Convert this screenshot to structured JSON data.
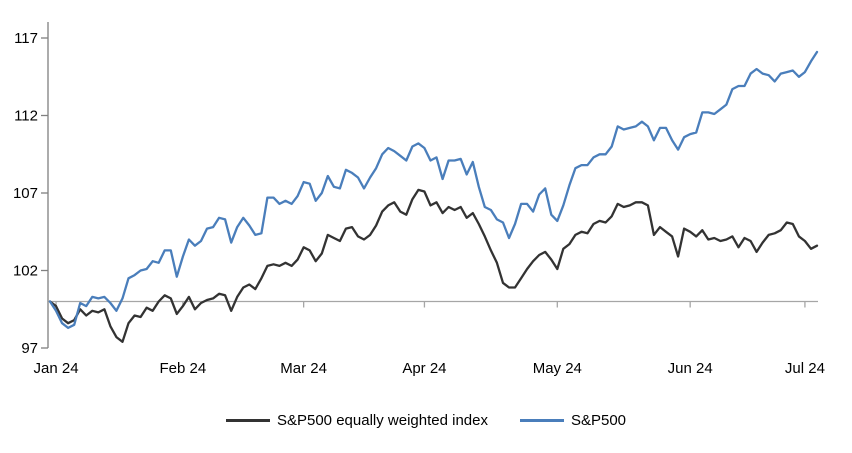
{
  "chart_data": {
    "type": "line",
    "title": "",
    "grid": false,
    "axis_color": "#808080",
    "baseline_color": "#a6a6a6",
    "x_axis": {
      "tick_labels": [
        "Jan 24",
        "Feb 24",
        "Mar 24",
        "Apr 24",
        "May 24",
        "Jun 24",
        "Jul 24"
      ]
    },
    "y_axis": {
      "ticks": [
        97,
        102,
        107,
        112,
        117
      ],
      "range": [
        97,
        118.2
      ],
      "baseline": 100
    },
    "legend": {
      "position": "bottom"
    },
    "month_start_indices": [
      1,
      22,
      42,
      62,
      84,
      106,
      125
    ],
    "dates": [
      "Dec 29",
      "Jan 2",
      "Jan 3",
      "Jan 4",
      "Jan 5",
      "Jan 8",
      "Jan 9",
      "Jan 10",
      "Jan 11",
      "Jan 12",
      "Jan 16",
      "Jan 17",
      "Jan 18",
      "Jan 19",
      "Jan 22",
      "Jan 23",
      "Jan 24",
      "Jan 25",
      "Jan 26",
      "Jan 29",
      "Jan 30",
      "Jan 31",
      "Feb 1",
      "Feb 2",
      "Feb 5",
      "Feb 6",
      "Feb 7",
      "Feb 8",
      "Feb 9",
      "Feb 12",
      "Feb 13",
      "Feb 14",
      "Feb 15",
      "Feb 16",
      "Feb 20",
      "Feb 21",
      "Feb 22",
      "Feb 23",
      "Feb 26",
      "Feb 27",
      "Feb 28",
      "Feb 29",
      "Mar 1",
      "Mar 4",
      "Mar 5",
      "Mar 6",
      "Mar 7",
      "Mar 8",
      "Mar 11",
      "Mar 12",
      "Mar 13",
      "Mar 14",
      "Mar 15",
      "Mar 18",
      "Mar 19",
      "Mar 20",
      "Mar 21",
      "Mar 22",
      "Mar 25",
      "Mar 26",
      "Mar 27",
      "Mar 28",
      "Apr 1",
      "Apr 2",
      "Apr 3",
      "Apr 4",
      "Apr 5",
      "Apr 8",
      "Apr 9",
      "Apr 10",
      "Apr 11",
      "Apr 12",
      "Apr 15",
      "Apr 16",
      "Apr 17",
      "Apr 18",
      "Apr 19",
      "Apr 22",
      "Apr 23",
      "Apr 24",
      "Apr 25",
      "Apr 26",
      "Apr 29",
      "Apr 30",
      "May 1",
      "May 2",
      "May 3",
      "May 6",
      "May 7",
      "May 8",
      "May 9",
      "May 10",
      "May 13",
      "May 14",
      "May 15",
      "May 16",
      "May 17",
      "May 20",
      "May 21",
      "May 22",
      "May 23",
      "May 24",
      "May 28",
      "May 29",
      "May 30",
      "May 31",
      "Jun 3",
      "Jun 4",
      "Jun 5",
      "Jun 6",
      "Jun 7",
      "Jun 10",
      "Jun 11",
      "Jun 12",
      "Jun 13",
      "Jun 14",
      "Jun 17",
      "Jun 18",
      "Jun 20",
      "Jun 21",
      "Jun 24",
      "Jun 25",
      "Jun 26",
      "Jun 27",
      "Jun 28",
      "Jul 1",
      "Jul 2",
      "Jul 3"
    ],
    "series": [
      {
        "name": "S&P500 equally weighted index",
        "color": "#333333",
        "data_name": "sp500-equal-weight-line",
        "values": [
          100.0,
          99.7,
          98.9,
          98.6,
          98.8,
          99.5,
          99.1,
          99.4,
          99.3,
          99.5,
          98.4,
          97.7,
          97.4,
          98.6,
          99.1,
          99.0,
          99.6,
          99.4,
          100.0,
          100.4,
          100.2,
          99.2,
          99.7,
          100.3,
          99.5,
          99.9,
          100.1,
          100.2,
          100.5,
          100.4,
          99.4,
          100.3,
          100.9,
          101.1,
          100.8,
          101.5,
          102.3,
          102.4,
          102.3,
          102.5,
          102.3,
          102.7,
          103.5,
          103.3,
          102.6,
          103.1,
          104.3,
          104.1,
          103.9,
          104.7,
          104.8,
          104.2,
          104.0,
          104.3,
          104.9,
          105.8,
          106.2,
          106.4,
          105.8,
          105.6,
          106.6,
          107.2,
          107.1,
          106.2,
          106.4,
          105.7,
          106.1,
          105.9,
          106.1,
          105.4,
          105.7,
          105.0,
          104.2,
          103.3,
          102.5,
          101.2,
          100.9,
          100.9,
          101.5,
          102.1,
          102.6,
          103.0,
          103.2,
          102.7,
          102.1,
          103.4,
          103.7,
          104.3,
          104.5,
          104.4,
          105.0,
          105.2,
          105.1,
          105.5,
          106.3,
          106.1,
          106.2,
          106.4,
          106.4,
          106.2,
          104.3,
          104.8,
          104.5,
          104.2,
          102.9,
          104.7,
          104.5,
          104.2,
          104.6,
          104.0,
          104.1,
          103.9,
          104.0,
          104.2,
          103.5,
          104.1,
          103.9,
          103.2,
          103.8,
          104.3,
          104.4,
          104.6,
          105.1,
          105.0,
          104.2,
          103.9,
          103.4,
          103.6
        ]
      },
      {
        "name": "S&P500",
        "color": "#4a7ebb",
        "data_name": "sp500-line",
        "values": [
          100.0,
          99.4,
          98.6,
          98.3,
          98.5,
          99.9,
          99.7,
          100.3,
          100.2,
          100.3,
          99.9,
          99.4,
          100.2,
          101.5,
          101.7,
          102.0,
          102.1,
          102.6,
          102.5,
          103.3,
          103.3,
          101.6,
          102.9,
          104.0,
          103.6,
          103.9,
          104.7,
          104.8,
          105.4,
          105.3,
          103.8,
          104.8,
          105.4,
          104.9,
          104.3,
          104.4,
          106.7,
          106.7,
          106.3,
          106.5,
          106.3,
          106.8,
          107.7,
          107.6,
          106.5,
          107.0,
          108.1,
          107.4,
          107.3,
          108.5,
          108.3,
          108.0,
          107.3,
          108.0,
          108.6,
          109.5,
          109.9,
          109.7,
          109.4,
          109.1,
          110.0,
          110.2,
          109.9,
          109.1,
          109.3,
          107.9,
          109.1,
          109.1,
          109.2,
          108.2,
          109.0,
          107.4,
          106.1,
          105.9,
          105.3,
          105.1,
          104.1,
          105.0,
          106.3,
          106.3,
          105.8,
          106.9,
          107.3,
          105.6,
          105.2,
          106.2,
          107.5,
          108.6,
          108.8,
          108.8,
          109.3,
          109.5,
          109.5,
          110.0,
          111.3,
          111.1,
          111.2,
          111.3,
          111.6,
          111.3,
          110.4,
          111.2,
          111.2,
          110.4,
          109.8,
          110.6,
          110.8,
          110.9,
          112.2,
          112.2,
          112.1,
          112.4,
          112.7,
          113.7,
          113.9,
          113.9,
          114.7,
          115.0,
          114.7,
          114.6,
          114.2,
          114.7,
          114.8,
          114.9,
          114.5,
          114.8,
          115.5,
          116.1
        ]
      }
    ]
  }
}
